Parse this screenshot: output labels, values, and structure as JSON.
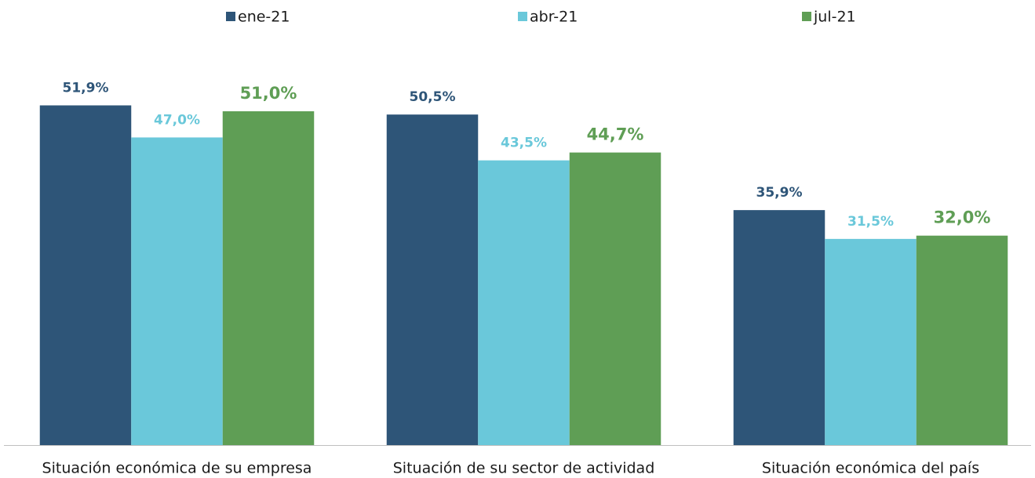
{
  "chart_data": {
    "type": "bar",
    "categories": [
      "Situación económica de su empresa",
      "Situación de su sector de actividad",
      "Situación económica del país"
    ],
    "series": [
      {
        "name": "ene-21",
        "color": "#2e5578",
        "values": [
          51.9,
          50.5,
          35.9
        ],
        "value_labels": [
          "51,9%",
          "50,5%",
          "35,9%"
        ]
      },
      {
        "name": "abr-21",
        "color": "#6ac8da",
        "values": [
          47.0,
          43.5,
          31.5
        ],
        "value_labels": [
          "47,0%",
          "43,5%",
          "31,5%"
        ]
      },
      {
        "name": "jul-21",
        "color": "#5f9e55",
        "values": [
          51.0,
          44.7,
          32.0
        ],
        "value_labels": [
          "51,0%",
          "44,7%",
          "32,0%"
        ]
      }
    ],
    "ylim": [
      0,
      68
    ],
    "legend": "top"
  }
}
